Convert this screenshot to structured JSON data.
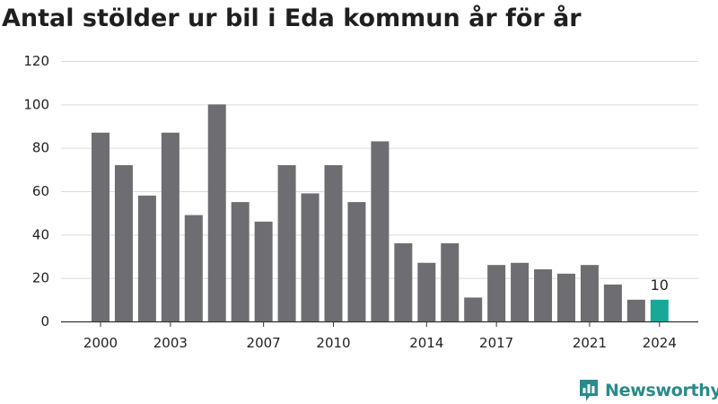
{
  "title": "Antal stölder ur bil i Eda kommun år för år",
  "brand": {
    "name": "Newsworthy",
    "icon": "newsworthy-logo-icon",
    "color": "#2b8a8a"
  },
  "chart_data": {
    "type": "bar",
    "title": "Antal stölder ur bil i Eda kommun år för år",
    "xlabel": "",
    "ylabel": "",
    "categories": [
      2000,
      2001,
      2002,
      2003,
      2004,
      2005,
      2006,
      2007,
      2008,
      2009,
      2010,
      2011,
      2012,
      2013,
      2014,
      2015,
      2016,
      2017,
      2018,
      2019,
      2020,
      2021,
      2022,
      2023,
      2024
    ],
    "values": [
      87,
      72,
      58,
      87,
      49,
      100,
      55,
      46,
      72,
      59,
      72,
      55,
      83,
      36,
      27,
      36,
      11,
      26,
      27,
      24,
      22,
      26,
      17,
      10,
      10
    ],
    "x_tick_labels": [
      "2000",
      "2003",
      "2007",
      "2010",
      "2014",
      "2017",
      "2021",
      "2024"
    ],
    "y_ticks": [
      0,
      20,
      40,
      60,
      80,
      100,
      120
    ],
    "ylim": [
      0,
      120
    ],
    "grid": true,
    "bar_color": "#6e6d72",
    "highlight_color": "#17a898",
    "highlight_index": 24,
    "data_labels": [
      {
        "index": 24,
        "text": "10"
      }
    ]
  }
}
